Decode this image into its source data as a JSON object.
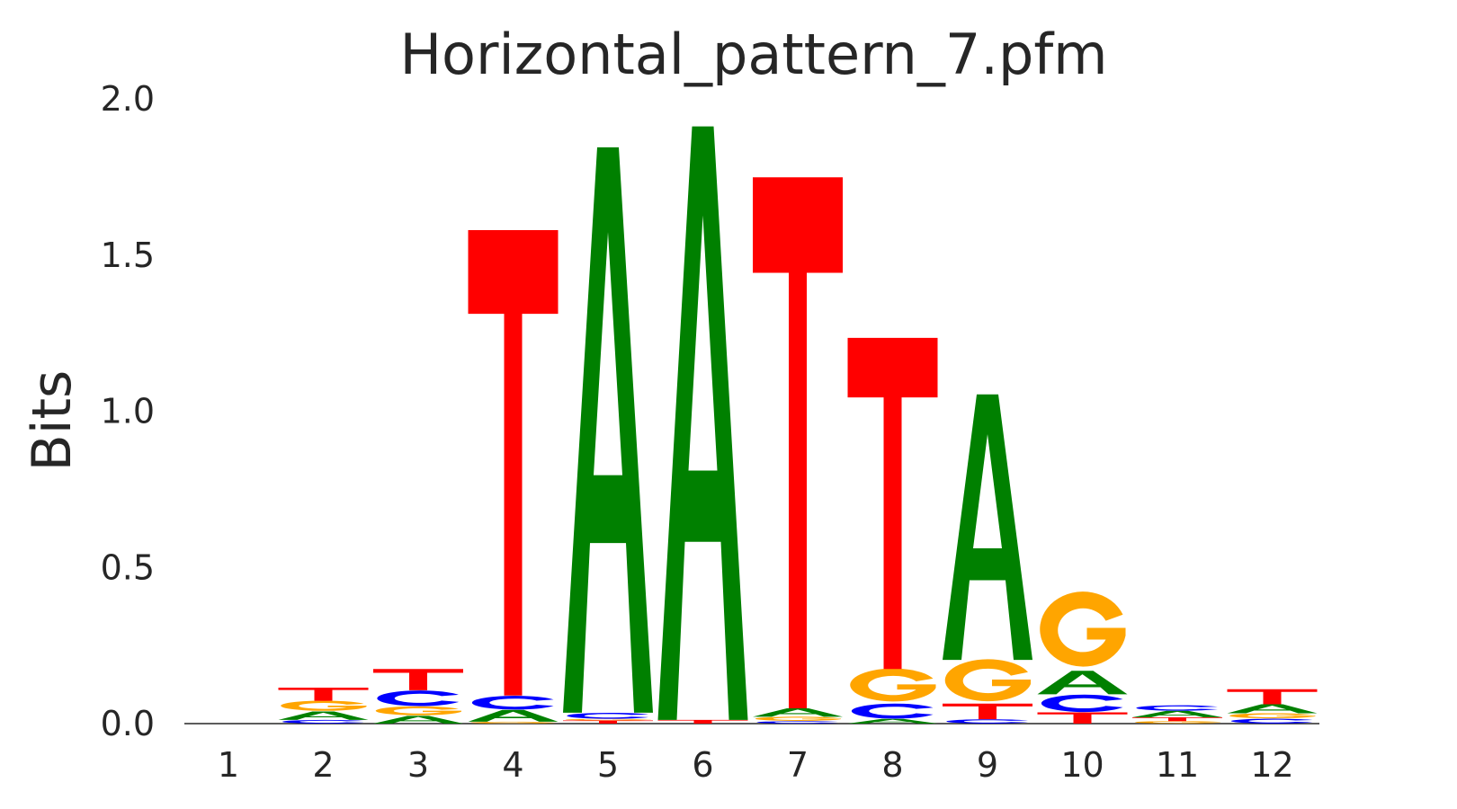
{
  "chart_data": {
    "type": "sequence-logo",
    "title": "Horizontal_pattern_7.pfm",
    "xlabel": "",
    "ylabel": "Bits",
    "ylim": [
      0,
      2
    ],
    "yticks": [
      "0.0",
      "0.5",
      "1.0",
      "1.5",
      "2.0"
    ],
    "positions": [
      "1",
      "2",
      "3",
      "4",
      "5",
      "6",
      "7",
      "8",
      "9",
      "10",
      "11",
      "12"
    ],
    "colors": {
      "A": "#008000",
      "C": "#0000ff",
      "G": "#ffa500",
      "T": "#ff0000"
    },
    "stacks": [
      [],
      [
        {
          "base": "C",
          "bits": 0.012
        },
        {
          "base": "A",
          "bits": 0.027
        },
        {
          "base": "G",
          "bits": 0.034
        },
        {
          "base": "T",
          "bits": 0.042
        }
      ],
      [
        {
          "base": "A",
          "bits": 0.025
        },
        {
          "base": "G",
          "bits": 0.03
        },
        {
          "base": "C",
          "bits": 0.052
        },
        {
          "base": "T",
          "bits": 0.068
        }
      ],
      [
        {
          "base": "G",
          "bits": 0.006
        },
        {
          "base": "A",
          "bits": 0.038
        },
        {
          "base": "C",
          "bits": 0.046
        },
        {
          "base": "T",
          "bits": 1.49
        }
      ],
      [
        {
          "base": "T",
          "bits": 0.01
        },
        {
          "base": "G",
          "bits": 0.005
        },
        {
          "base": "C",
          "bits": 0.02
        },
        {
          "base": "A",
          "bits": 1.81
        }
      ],
      [
        {
          "base": "T",
          "bits": 0.012
        },
        {
          "base": "A",
          "bits": 1.9
        }
      ],
      [
        {
          "base": "C",
          "bits": 0.008
        },
        {
          "base": "G",
          "bits": 0.014
        },
        {
          "base": "A",
          "bits": 0.027
        },
        {
          "base": "T",
          "bits": 1.7
        }
      ],
      [
        {
          "base": "A",
          "bits": 0.015
        },
        {
          "base": "C",
          "bits": 0.05
        },
        {
          "base": "G",
          "bits": 0.11
        },
        {
          "base": "T",
          "bits": 1.06
        }
      ],
      [
        {
          "base": "C",
          "bits": 0.014
        },
        {
          "base": "T",
          "bits": 0.05
        },
        {
          "base": "G",
          "bits": 0.14
        },
        {
          "base": "A",
          "bits": 0.85
        }
      ],
      [
        {
          "base": "T",
          "bits": 0.036
        },
        {
          "base": "C",
          "bits": 0.058
        },
        {
          "base": "A",
          "bits": 0.075
        },
        {
          "base": "G",
          "bits": 0.25
        }
      ],
      [
        {
          "base": "G",
          "bits": 0.008
        },
        {
          "base": "T",
          "bits": 0.012
        },
        {
          "base": "A",
          "bits": 0.021
        },
        {
          "base": "C",
          "bits": 0.018
        }
      ],
      [
        {
          "base": "C",
          "bits": 0.016
        },
        {
          "base": "G",
          "bits": 0.017
        },
        {
          "base": "A",
          "bits": 0.029
        },
        {
          "base": "T",
          "bits": 0.048
        }
      ]
    ]
  }
}
